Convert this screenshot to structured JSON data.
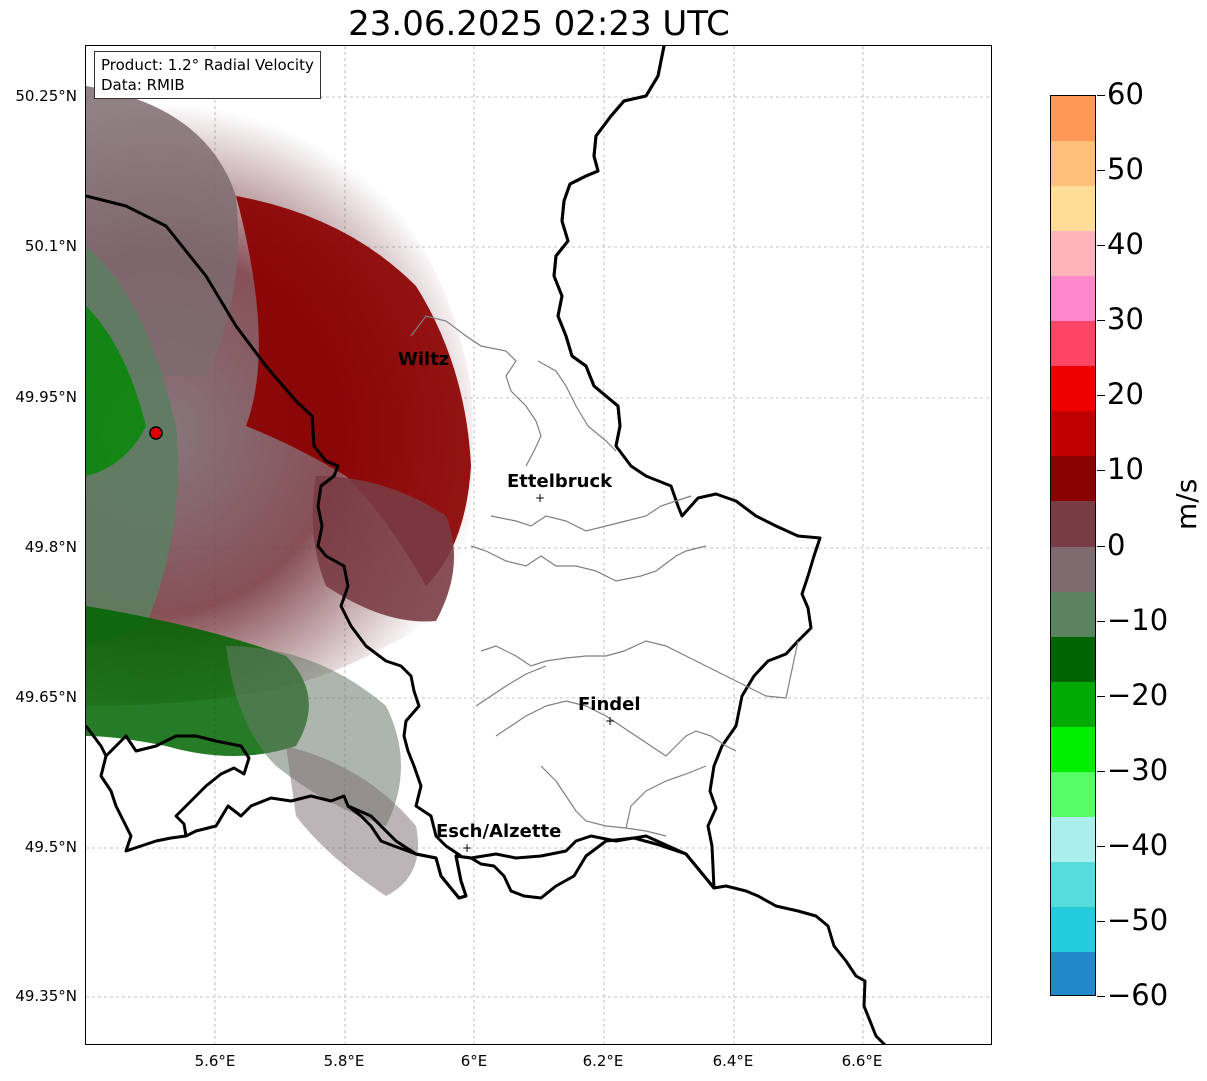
{
  "title": "23.06.2025 02:23 UTC",
  "info": {
    "product": "Product: 1.2° Radial Velocity",
    "source": "Data: RMIB"
  },
  "axes": {
    "y_ticks": [
      "50.25°N",
      "50.1°N",
      "49.95°N",
      "49.8°N",
      "49.65°N",
      "49.5°N",
      "49.35°N"
    ],
    "x_ticks": [
      "5.6°E",
      "5.8°E",
      "6°E",
      "6.2°E",
      "6.4°E",
      "6.6°E"
    ]
  },
  "cities": [
    {
      "name": "Wiltz",
      "marker": false
    },
    {
      "name": "Ettelbruck",
      "marker": true
    },
    {
      "name": "Findel",
      "marker": true
    },
    {
      "name": "Esch/Alzette",
      "marker": true
    }
  ],
  "radar_site": {
    "color": "#e00000"
  },
  "colorbar": {
    "unit": "m/s",
    "ticks": [
      "60",
      "50",
      "40",
      "30",
      "20",
      "10",
      "0",
      "−10",
      "−20",
      "−30",
      "−40",
      "−50",
      "−60"
    ],
    "range": [
      -60,
      60
    ],
    "colors": [
      "#ff9955",
      "#ffc07a",
      "#ffdd99",
      "#ffb3bb",
      "#ff88cc",
      "#ff4466",
      "#ee0000",
      "#c00000",
      "#8b0000",
      "#7a3c44",
      "#7d6b70",
      "#5a8460",
      "#006400",
      "#00aa00",
      "#00ee00",
      "#55ff66",
      "#aaeeee",
      "#55dddd",
      "#22ccdd",
      "#2288cc"
    ]
  },
  "colors": {
    "border": "#000000",
    "canton": "#808080",
    "grid": "#b0b0b0"
  }
}
